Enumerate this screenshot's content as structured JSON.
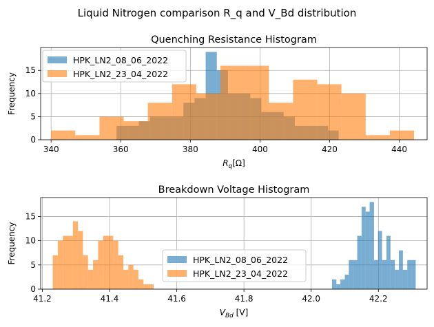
{
  "figure": {
    "suptitle": "Liquid Nitrogen comparison R_q and V_Bd distribution"
  },
  "chart_data": [
    {
      "type": "histogram",
      "title": "Quenching Resistance Histogram",
      "xlabel_main": "R",
      "xlabel_sub": "q",
      "xlabel_unit": "[Ω]",
      "ylabel": "Frequency",
      "xlim": [
        337,
        448
      ],
      "ylim": [
        0,
        19.95
      ],
      "xticks": [
        340,
        360,
        380,
        400,
        420,
        440
      ],
      "yticks": [
        0,
        5,
        10,
        15
      ],
      "grid": true,
      "legend_position": "upper left",
      "series": [
        {
          "name": "HPK_LN2_08_06_2022",
          "color": "#1f77b4",
          "opacity": 0.6,
          "bins": [
            [
              358.8,
              362.0,
              3
            ],
            [
              362.0,
              365.2,
              3
            ],
            [
              365.2,
              368.4,
              4
            ],
            [
              368.4,
              371.6,
              5
            ],
            [
              371.6,
              374.8,
              5
            ],
            [
              374.8,
              378.0,
              5
            ],
            [
              378.0,
              381.2,
              8
            ],
            [
              381.2,
              384.4,
              9
            ],
            [
              384.4,
              387.6,
              19
            ],
            [
              387.6,
              390.8,
              15
            ],
            [
              390.8,
              394.0,
              10
            ],
            [
              394.0,
              397.2,
              10
            ],
            [
              397.2,
              400.4,
              9
            ],
            [
              400.4,
              403.6,
              6
            ],
            [
              403.6,
              406.8,
              6
            ],
            [
              406.8,
              410.0,
              5
            ],
            [
              410.0,
              413.2,
              3
            ],
            [
              413.2,
              416.4,
              3
            ],
            [
              416.4,
              419.6,
              3
            ],
            [
              419.6,
              422.6,
              2
            ]
          ]
        },
        {
          "name": "HPK_LN2_23_04_2022",
          "color": "#ff7f0e",
          "opacity": 0.6,
          "bins": [
            [
              340.0,
              346.95,
              2
            ],
            [
              346.95,
              353.9,
              1
            ],
            [
              353.9,
              360.85,
              5
            ],
            [
              360.85,
              367.8,
              4
            ],
            [
              367.8,
              374.75,
              8
            ],
            [
              374.75,
              381.7,
              12
            ],
            [
              381.7,
              388.65,
              10
            ],
            [
              388.65,
              395.6,
              16
            ],
            [
              395.6,
              402.55,
              16
            ],
            [
              402.55,
              409.5,
              8
            ],
            [
              409.5,
              416.45,
              13
            ],
            [
              416.45,
              423.4,
              12
            ],
            [
              423.4,
              430.35,
              10
            ],
            [
              430.35,
              437.3,
              1
            ],
            [
              437.3,
              444.25,
              2
            ]
          ]
        }
      ]
    },
    {
      "type": "histogram",
      "title": "Breakdown Voltage Histogram",
      "xlabel_main": "V",
      "xlabel_sub": "Bd",
      "xlabel_unit": " [V]",
      "ylabel": "Frequency",
      "xlim": [
        41.195,
        42.345
      ],
      "ylim": [
        0,
        18.9
      ],
      "xticks": [
        41.2,
        41.4,
        41.6,
        41.8,
        42.0,
        42.2
      ],
      "xtick_labels": [
        "41.2",
        "41.4",
        "41.6",
        "41.8",
        "42.0",
        "42.2"
      ],
      "yticks": [
        0,
        5,
        10,
        15
      ],
      "grid": true,
      "legend_position": "lower center",
      "series": [
        {
          "name": "HPK_LN2_08_06_2022",
          "color": "#1f77b4",
          "opacity": 0.6,
          "bins": [
            [
              42.062,
              42.075,
              2
            ],
            [
              42.075,
              42.087,
              1
            ],
            [
              42.087,
              42.1,
              2
            ],
            [
              42.1,
              42.112,
              3
            ],
            [
              42.112,
              42.125,
              6
            ],
            [
              42.125,
              42.137,
              6
            ],
            [
              42.137,
              42.15,
              11
            ],
            [
              42.15,
              42.162,
              17
            ],
            [
              42.162,
              42.174,
              16
            ],
            [
              42.174,
              42.187,
              18
            ],
            [
              42.187,
              42.199,
              6
            ],
            [
              42.199,
              42.211,
              12
            ],
            [
              42.211,
              42.224,
              6
            ],
            [
              42.224,
              42.236,
              11
            ],
            [
              42.236,
              42.249,
              6
            ],
            [
              42.249,
              42.261,
              4
            ],
            [
              42.261,
              42.273,
              8
            ],
            [
              42.273,
              42.286,
              4
            ],
            [
              42.286,
              42.298,
              6
            ],
            [
              42.298,
              42.311,
              6
            ]
          ]
        },
        {
          "name": "HPK_LN2_23_04_2022",
          "color": "#ff7f0e",
          "opacity": 0.6,
          "bins": [
            [
              41.231,
              41.246,
              7
            ],
            [
              41.246,
              41.261,
              10
            ],
            [
              41.261,
              41.276,
              11
            ],
            [
              41.276,
              41.291,
              11
            ],
            [
              41.291,
              41.306,
              14
            ],
            [
              41.306,
              41.321,
              12
            ],
            [
              41.321,
              41.336,
              7
            ],
            [
              41.336,
              41.351,
              4
            ],
            [
              41.351,
              41.366,
              6
            ],
            [
              41.366,
              41.381,
              10
            ],
            [
              41.381,
              41.396,
              11
            ],
            [
              41.396,
              41.411,
              11
            ],
            [
              41.411,
              41.426,
              10
            ],
            [
              41.426,
              41.441,
              7
            ],
            [
              41.441,
              41.456,
              4
            ],
            [
              41.456,
              41.471,
              5
            ],
            [
              41.471,
              41.486,
              4
            ],
            [
              41.486,
              41.501,
              2
            ],
            [
              41.501,
              41.516,
              1
            ],
            [
              41.516,
              41.531,
              1
            ]
          ]
        }
      ]
    }
  ]
}
